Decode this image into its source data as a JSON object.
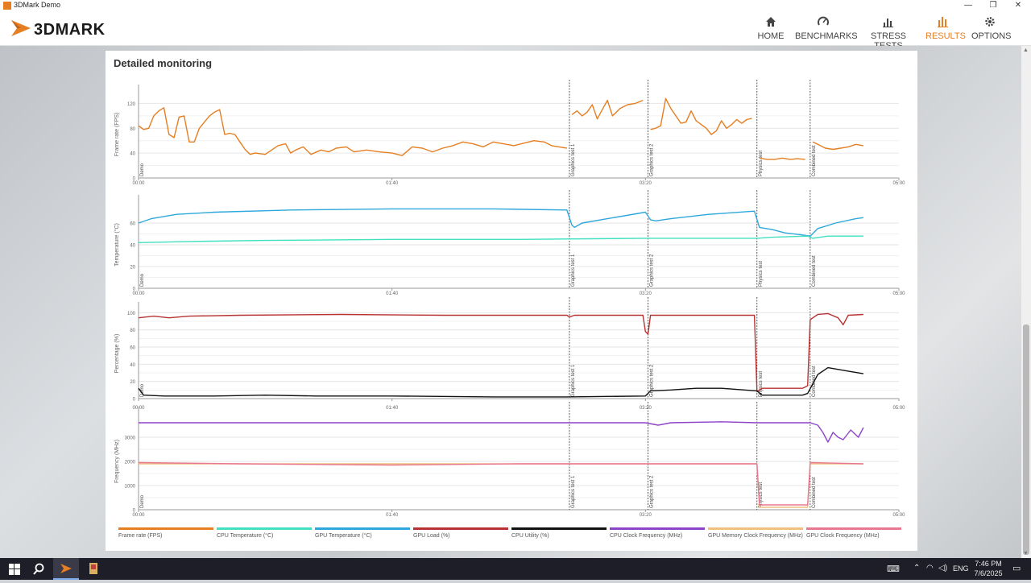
{
  "window": {
    "title": "3DMark Demo",
    "minimize": "—",
    "restore": "❐",
    "close": "✕"
  },
  "brand": {
    "name": "3DMARK",
    "accent": "#e67e22"
  },
  "nav": [
    {
      "label": "HOME",
      "icon": "home-icon",
      "active": false
    },
    {
      "label": "BENCHMARKS",
      "icon": "gauge-icon",
      "active": false
    },
    {
      "label": "STRESS TESTS",
      "icon": "bar-chart-icon",
      "active": false
    },
    {
      "label": "RESULTS",
      "icon": "results-icon",
      "active": true
    },
    {
      "label": "OPTIONS",
      "icon": "gear-icon",
      "active": false
    }
  ],
  "panel": {
    "title": "Detailed monitoring"
  },
  "time_axis": {
    "ticks": [
      "00:00",
      "01:40",
      "03:20",
      "05:00"
    ],
    "range_seconds": [
      0,
      300
    ]
  },
  "test_markers": [
    {
      "label": "Demo",
      "t": 0
    },
    {
      "label": "Graphics test 1",
      "t": 170
    },
    {
      "label": "Graphics test 2",
      "t": 201
    },
    {
      "label": "Physics test",
      "t": 244
    },
    {
      "label": "Combined test",
      "t": 265
    }
  ],
  "legend": [
    {
      "label": "Frame rate (FPS)",
      "color": "#e67e22"
    },
    {
      "label": "CPU Temperature (°C)",
      "color": "#40e0c0"
    },
    {
      "label": "GPU Temperature (°C)",
      "color": "#2ea8dc"
    },
    {
      "label": "GPU Load (%)",
      "color": "#b83232"
    },
    {
      "label": "CPU Utility (%)",
      "color": "#111111"
    },
    {
      "label": "CPU Clock Frequency (MHz)",
      "color": "#8e44c8"
    },
    {
      "label": "GPU Memory Clock Frequency (MHz)",
      "color": "#f0c080"
    },
    {
      "label": "GPU Clock Frequency (MHz)",
      "color": "#e87890"
    }
  ],
  "chart_data": [
    {
      "type": "line",
      "ylabel": "Frame rate (FPS)",
      "ylim": [
        0,
        140
      ],
      "yticks": [
        0,
        40,
        80,
        120
      ],
      "grid": true,
      "series": [
        {
          "name": "Frame rate (FPS)",
          "color": "#e67e22",
          "points": [
            [
              0,
              84
            ],
            [
              2,
              78
            ],
            [
              4,
              80
            ],
            [
              6,
              100
            ],
            [
              8,
              108
            ],
            [
              10,
              113
            ],
            [
              12,
              70
            ],
            [
              14,
              65
            ],
            [
              16,
              98
            ],
            [
              18,
              100
            ],
            [
              20,
              58
            ],
            [
              22,
              58
            ],
            [
              24,
              80
            ],
            [
              26,
              90
            ],
            [
              28,
              100
            ],
            [
              30,
              106
            ],
            [
              32,
              110
            ],
            [
              34,
              70
            ],
            [
              36,
              72
            ],
            [
              38,
              70
            ],
            [
              40,
              58
            ],
            [
              42,
              46
            ],
            [
              44,
              38
            ],
            [
              46,
              40
            ],
            [
              50,
              38
            ],
            [
              55,
              52
            ],
            [
              58,
              55
            ],
            [
              60,
              40
            ],
            [
              62,
              45
            ],
            [
              65,
              50
            ],
            [
              68,
              38
            ],
            [
              72,
              45
            ],
            [
              75,
              42
            ],
            [
              78,
              48
            ],
            [
              82,
              50
            ],
            [
              85,
              42
            ],
            [
              90,
              45
            ],
            [
              95,
              42
            ],
            [
              100,
              40
            ],
            [
              104,
              36
            ],
            [
              108,
              50
            ],
            [
              112,
              48
            ],
            [
              116,
              42
            ],
            [
              120,
              48
            ],
            [
              124,
              52
            ],
            [
              128,
              58
            ],
            [
              132,
              55
            ],
            [
              136,
              50
            ],
            [
              140,
              58
            ],
            [
              144,
              55
            ],
            [
              148,
              52
            ],
            [
              152,
              56
            ],
            [
              156,
              60
            ],
            [
              160,
              58
            ],
            [
              163,
              52
            ],
            [
              166,
              50
            ],
            [
              169,
              48
            ]
          ]
        },
        {
          "name": "Frame rate (FPS)",
          "color": "#e67e22",
          "points": [
            [
              171,
              102
            ],
            [
              173,
              108
            ],
            [
              175,
              100
            ],
            [
              177,
              106
            ],
            [
              179,
              118
            ],
            [
              181,
              95
            ],
            [
              183,
              110
            ],
            [
              185,
              125
            ],
            [
              187,
              100
            ],
            [
              190,
              112
            ],
            [
              193,
              118
            ],
            [
              196,
              120
            ],
            [
              199,
              125
            ]
          ]
        },
        {
          "name": "Frame rate (FPS)",
          "color": "#e67e22",
          "points": [
            [
              202,
              78
            ],
            [
              204,
              80
            ],
            [
              206,
              84
            ],
            [
              208,
              128
            ],
            [
              210,
              112
            ],
            [
              212,
              100
            ],
            [
              214,
              88
            ],
            [
              216,
              90
            ],
            [
              218,
              108
            ],
            [
              220,
              92
            ],
            [
              222,
              86
            ],
            [
              224,
              80
            ],
            [
              226,
              70
            ],
            [
              228,
              76
            ],
            [
              230,
              92
            ],
            [
              232,
              80
            ],
            [
              234,
              86
            ],
            [
              236,
              94
            ],
            [
              238,
              88
            ],
            [
              240,
              94
            ],
            [
              242,
              96
            ]
          ]
        },
        {
          "name": "Frame rate (FPS)",
          "color": "#e67e22",
          "points": [
            [
              245,
              32
            ],
            [
              248,
              30
            ],
            [
              251,
              30
            ],
            [
              254,
              32
            ],
            [
              257,
              30
            ],
            [
              260,
              31
            ],
            [
              263,
              30
            ]
          ]
        },
        {
          "name": "Frame rate (FPS)",
          "color": "#e67e22",
          "points": [
            [
              266,
              58
            ],
            [
              268,
              54
            ],
            [
              271,
              48
            ],
            [
              274,
              46
            ],
            [
              277,
              48
            ],
            [
              280,
              50
            ],
            [
              283,
              54
            ],
            [
              286,
              52
            ]
          ]
        }
      ]
    },
    {
      "type": "line",
      "ylabel": "Temperature (°C)",
      "ylim": [
        0,
        80
      ],
      "yticks": [
        0,
        20,
        40,
        60
      ],
      "grid": true,
      "series": [
        {
          "name": "GPU Temperature (°C)",
          "color": "#2ea8dc",
          "points": [
            [
              0,
              60
            ],
            [
              5,
              64
            ],
            [
              15,
              68
            ],
            [
              30,
              70
            ],
            [
              60,
              72
            ],
            [
              100,
              73
            ],
            [
              140,
              73
            ],
            [
              169,
              72
            ],
            [
              171,
              58
            ],
            [
              172,
              56
            ],
            [
              175,
              60
            ],
            [
              185,
              64
            ],
            [
              200,
              70
            ],
            [
              202,
              63
            ],
            [
              204,
              62
            ],
            [
              210,
              64
            ],
            [
              225,
              68
            ],
            [
              243,
              71
            ],
            [
              245,
              56
            ],
            [
              250,
              54
            ],
            [
              255,
              51
            ],
            [
              262,
              49
            ],
            [
              265,
              48
            ],
            [
              268,
              55
            ],
            [
              275,
              60
            ],
            [
              283,
              64
            ],
            [
              286,
              65
            ]
          ]
        },
        {
          "name": "CPU Temperature (°C)",
          "color": "#40e0c0",
          "points": [
            [
              0,
              42
            ],
            [
              20,
              43
            ],
            [
              50,
              44
            ],
            [
              100,
              45
            ],
            [
              150,
              45
            ],
            [
              200,
              46
            ],
            [
              244,
              46
            ],
            [
              250,
              47
            ],
            [
              264,
              48
            ],
            [
              266,
              46
            ],
            [
              272,
              48
            ],
            [
              286,
              48
            ]
          ]
        }
      ]
    },
    {
      "type": "line",
      "ylabel": "Percentage (%)",
      "ylim": [
        0,
        105
      ],
      "yticks": [
        0,
        20,
        40,
        60,
        80,
        100
      ],
      "grid": true,
      "series": [
        {
          "name": "GPU Load (%)",
          "color": "#b83232",
          "points": [
            [
              0,
              94
            ],
            [
              6,
              96
            ],
            [
              12,
              94
            ],
            [
              20,
              96
            ],
            [
              40,
              97
            ],
            [
              80,
              98
            ],
            [
              120,
              97
            ],
            [
              169,
              97
            ],
            [
              170,
              95
            ],
            [
              172,
              97
            ],
            [
              199,
              97
            ],
            [
              200,
              78
            ],
            [
              201,
              75
            ],
            [
              202,
              97
            ],
            [
              243,
              97
            ],
            [
              244,
              8
            ],
            [
              246,
              12
            ],
            [
              262,
              12
            ],
            [
              264,
              15
            ],
            [
              265,
              92
            ],
            [
              268,
              98
            ],
            [
              272,
              99
            ],
            [
              276,
              94
            ],
            [
              278,
              86
            ],
            [
              280,
              97
            ],
            [
              286,
              98
            ]
          ]
        },
        {
          "name": "CPU Utility (%)",
          "color": "#111111",
          "points": [
            [
              0,
              12
            ],
            [
              1,
              8
            ],
            [
              2,
              4
            ],
            [
              10,
              3
            ],
            [
              30,
              3
            ],
            [
              50,
              4
            ],
            [
              70,
              3
            ],
            [
              100,
              3
            ],
            [
              140,
              2
            ],
            [
              169,
              2
            ],
            [
              200,
              3
            ],
            [
              202,
              9
            ],
            [
              210,
              10
            ],
            [
              220,
              12
            ],
            [
              230,
              12
            ],
            [
              244,
              9
            ],
            [
              246,
              4
            ],
            [
              262,
              4
            ],
            [
              264,
              6
            ],
            [
              268,
              28
            ],
            [
              272,
              36
            ],
            [
              280,
              32
            ],
            [
              286,
              29
            ]
          ]
        }
      ]
    },
    {
      "type": "line",
      "ylabel": "Frequency (MHz)",
      "ylim": [
        0,
        4000
      ],
      "yticks": [
        0,
        1000,
        2000,
        3000
      ],
      "grid": true,
      "series": [
        {
          "name": "CPU Clock Frequency (MHz)",
          "color": "#8e44c8",
          "points": [
            [
              0,
              3600
            ],
            [
              100,
              3600
            ],
            [
              200,
              3600
            ],
            [
              205,
              3500
            ],
            [
              210,
              3600
            ],
            [
              230,
              3640
            ],
            [
              244,
              3600
            ],
            [
              265,
              3600
            ],
            [
              268,
              3500
            ],
            [
              270,
              3200
            ],
            [
              272,
              2800
            ],
            [
              274,
              3200
            ],
            [
              276,
              3000
            ],
            [
              278,
              2900
            ],
            [
              281,
              3300
            ],
            [
              284,
              3000
            ],
            [
              286,
              3400
            ]
          ]
        },
        {
          "name": "GPU Memory Clock Frequency (MHz)",
          "color": "#f0c080",
          "points": [
            [
              0,
              1900
            ],
            [
              100,
              1900
            ],
            [
              200,
              1900
            ],
            [
              244,
              1900
            ],
            [
              245,
              100
            ],
            [
              264,
              100
            ],
            [
              265,
              1900
            ],
            [
              286,
              1900
            ]
          ]
        },
        {
          "name": "GPU Clock Frequency (MHz)",
          "color": "#e87890",
          "points": [
            [
              0,
              1950
            ],
            [
              40,
              1900
            ],
            [
              100,
              1850
            ],
            [
              150,
              1900
            ],
            [
              200,
              1900
            ],
            [
              244,
              1900
            ],
            [
              245,
              200
            ],
            [
              264,
              200
            ],
            [
              265,
              1950
            ],
            [
              286,
              1900
            ]
          ]
        }
      ]
    }
  ],
  "taskbar": {
    "language": "ENG",
    "time": "7:46 PM",
    "date": "7/6/2025"
  }
}
